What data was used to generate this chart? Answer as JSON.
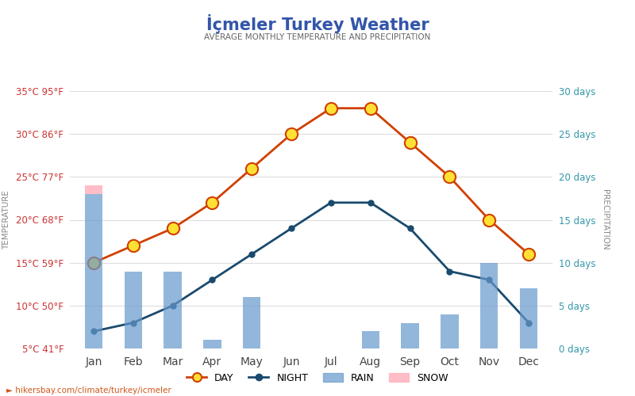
{
  "title": "İçmeler Turkey Weather",
  "subtitle": "AVERAGE MONTHLY TEMPERATURE AND PRECIPITATION",
  "months": [
    "Jan",
    "Feb",
    "Mar",
    "Apr",
    "May",
    "Jun",
    "Jul",
    "Aug",
    "Sep",
    "Oct",
    "Nov",
    "Dec"
  ],
  "day_temp": [
    15,
    17,
    19,
    22,
    26,
    30,
    33,
    33,
    29,
    25,
    20,
    16
  ],
  "night_temp": [
    7,
    8,
    10,
    13,
    16,
    19,
    22,
    22,
    19,
    14,
    13,
    8
  ],
  "rain_days": [
    18,
    9,
    9,
    1,
    6,
    0,
    0,
    2,
    3,
    4,
    10,
    7
  ],
  "snow_days": [
    1,
    0,
    0,
    0,
    0,
    0,
    0,
    0,
    0,
    0,
    0,
    0
  ],
  "temp_ylim": [
    5,
    35
  ],
  "temp_yticks": [
    5,
    10,
    15,
    20,
    25,
    30,
    35
  ],
  "temp_ytick_labels": [
    "5°C 41°F",
    "10°C 50°F",
    "15°C 59°F",
    "20°C 68°F",
    "25°C 77°F",
    "30°C 86°F",
    "35°C 95°F"
  ],
  "precip_ylim": [
    0,
    30
  ],
  "precip_yticks": [
    0,
    5,
    10,
    15,
    20,
    25,
    30
  ],
  "precip_ytick_labels": [
    "0 days",
    "5 days",
    "10 days",
    "15 days",
    "20 days",
    "25 days",
    "30 days"
  ],
  "day_color": "#d04000",
  "night_color": "#1a4a6e",
  "rain_color": "#6699cc",
  "snow_color": "#ffb6c1",
  "left_label_color": "#cc3333",
  "right_label_color": "#3399aa",
  "title_color": "#3355aa",
  "subtitle_color": "#666666",
  "background_color": "#ffffff",
  "grid_color": "#dddddd",
  "watermark": "hikersbay.com/climate/turkey/icmeler",
  "xlabel_color": "#888888",
  "month_color": "#444444"
}
